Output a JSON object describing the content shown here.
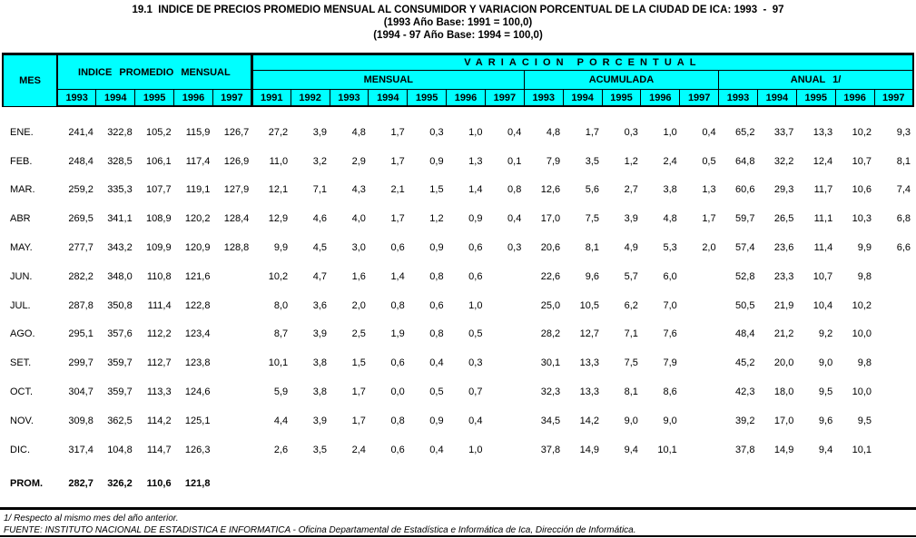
{
  "title": {
    "line1": "19.1  INDICE DE PRECIOS PROMEDIO MENSUAL AL CONSUMIDOR Y VARIACION PORCENTUAL DE LA CIUDAD DE ICA: 1993  -  97",
    "line2": "(1993 Año Base: 1991 = 100,0)",
    "line3": "(1994 - 97 Año Base: 1994 = 100,0)"
  },
  "header": {
    "mes": "MES",
    "indice_group": "INDICE PROMEDIO MENSUAL",
    "variacion_group": "VARIACION PORCENTUAL",
    "mensual_group": "MENSUAL",
    "acumulada_group": "ACUMULADA",
    "anual_group": "ANUAL 1/",
    "years": {
      "indice": [
        "1993",
        "1994",
        "1995",
        "1996",
        "1997"
      ],
      "mensual": [
        "1991",
        "1992",
        "1993",
        "1994",
        "1995",
        "1996",
        "1997"
      ],
      "acumulada": [
        "1993",
        "1994",
        "1995",
        "1996",
        "1997"
      ],
      "anual": [
        "1993",
        "1994",
        "1995",
        "1996",
        "1997"
      ]
    }
  },
  "rows": [
    {
      "mes": "ENE.",
      "indice": [
        "241,4",
        "322,8",
        "105,2",
        "115,9",
        "126,7"
      ],
      "mensual": [
        "27,2",
        "3,9",
        "4,8",
        "1,7",
        "0,3",
        "1,0",
        "0,4"
      ],
      "acumulada": [
        "4,8",
        "1,7",
        "0,3",
        "1,0",
        "0,4"
      ],
      "anual": [
        "65,2",
        "33,7",
        "13,3",
        "10,2",
        "9,3"
      ]
    },
    {
      "mes": "FEB.",
      "indice": [
        "248,4",
        "328,5",
        "106,1",
        "117,4",
        "126,9"
      ],
      "mensual": [
        "11,0",
        "3,2",
        "2,9",
        "1,7",
        "0,9",
        "1,3",
        "0,1"
      ],
      "acumulada": [
        "7,9",
        "3,5",
        "1,2",
        "2,4",
        "0,5"
      ],
      "anual": [
        "64,8",
        "32,2",
        "12,4",
        "10,7",
        "8,1"
      ]
    },
    {
      "mes": "MAR.",
      "indice": [
        "259,2",
        "335,3",
        "107,7",
        "119,1",
        "127,9"
      ],
      "mensual": [
        "12,1",
        "7,1",
        "4,3",
        "2,1",
        "1,5",
        "1,4",
        "0,8"
      ],
      "acumulada": [
        "12,6",
        "5,6",
        "2,7",
        "3,8",
        "1,3"
      ],
      "anual": [
        "60,6",
        "29,3",
        "11,7",
        "10,6",
        "7,4"
      ]
    },
    {
      "mes": "ABR",
      "indice": [
        "269,5",
        "341,1",
        "108,9",
        "120,2",
        "128,4"
      ],
      "mensual": [
        "12,9",
        "4,6",
        "4,0",
        "1,7",
        "1,2",
        "0,9",
        "0,4"
      ],
      "acumulada": [
        "17,0",
        "7,5",
        "3,9",
        "4,8",
        "1,7"
      ],
      "anual": [
        "59,7",
        "26,5",
        "11,1",
        "10,3",
        "6,8"
      ]
    },
    {
      "mes": "MAY.",
      "indice": [
        "277,7",
        "343,2",
        "109,9",
        "120,9",
        "128,8"
      ],
      "mensual": [
        "9,9",
        "4,5",
        "3,0",
        "0,6",
        "0,9",
        "0,6",
        "0,3"
      ],
      "acumulada": [
        "20,6",
        "8,1",
        "4,9",
        "5,3",
        "2,0"
      ],
      "anual": [
        "57,4",
        "23,6",
        "11,4",
        "9,9",
        "6,6"
      ]
    },
    {
      "mes": "JUN.",
      "indice": [
        "282,2",
        "348,0",
        "110,8",
        "121,6",
        ""
      ],
      "mensual": [
        "10,2",
        "4,7",
        "1,6",
        "1,4",
        "0,8",
        "0,6",
        ""
      ],
      "acumulada": [
        "22,6",
        "9,6",
        "5,7",
        "6,0",
        ""
      ],
      "anual": [
        "52,8",
        "23,3",
        "10,7",
        "9,8",
        ""
      ]
    },
    {
      "mes": "JUL.",
      "indice": [
        "287,8",
        "350,8",
        "111,4",
        "122,8",
        ""
      ],
      "mensual": [
        "8,0",
        "3,6",
        "2,0",
        "0,8",
        "0,6",
        "1,0",
        ""
      ],
      "acumulada": [
        "25,0",
        "10,5",
        "6,2",
        "7,0",
        ""
      ],
      "anual": [
        "50,5",
        "21,9",
        "10,4",
        "10,2",
        ""
      ]
    },
    {
      "mes": "AGO.",
      "indice": [
        "295,1",
        "357,6",
        "112,2",
        "123,4",
        ""
      ],
      "mensual": [
        "8,7",
        "3,9",
        "2,5",
        "1,9",
        "0,8",
        "0,5",
        ""
      ],
      "acumulada": [
        "28,2",
        "12,7",
        "7,1",
        "7,6",
        ""
      ],
      "anual": [
        "48,4",
        "21,2",
        "9,2",
        "10,0",
        ""
      ]
    },
    {
      "mes": "SET.",
      "indice": [
        "299,7",
        "359,7",
        "112,7",
        "123,8",
        ""
      ],
      "mensual": [
        "10,1",
        "3,8",
        "1,5",
        "0,6",
        "0,4",
        "0,3",
        ""
      ],
      "acumulada": [
        "30,1",
        "13,3",
        "7,5",
        "7,9",
        ""
      ],
      "anual": [
        "45,2",
        "20,0",
        "9,0",
        "9,8",
        ""
      ]
    },
    {
      "mes": "OCT.",
      "indice": [
        "304,7",
        "359,7",
        "113,3",
        "124,6",
        ""
      ],
      "mensual": [
        "5,9",
        "3,8",
        "1,7",
        "0,0",
        "0,5",
        "0,7",
        ""
      ],
      "acumulada": [
        "32,3",
        "13,3",
        "8,1",
        "8,6",
        ""
      ],
      "anual": [
        "42,3",
        "18,0",
        "9,5",
        "10,0",
        ""
      ]
    },
    {
      "mes": "NOV.",
      "indice": [
        "309,8",
        "362,5",
        "114,2",
        "125,1",
        ""
      ],
      "mensual": [
        "4,4",
        "3,9",
        "1,7",
        "0,8",
        "0,9",
        "0,4",
        ""
      ],
      "acumulada": [
        "34,5",
        "14,2",
        "9,0",
        "9,0",
        ""
      ],
      "anual": [
        "39,2",
        "17,0",
        "9,6",
        "9,5",
        ""
      ]
    },
    {
      "mes": "DIC.",
      "indice": [
        "317,4",
        "104,8",
        "114,7",
        "126,3",
        ""
      ],
      "mensual": [
        "2,6",
        "3,5",
        "2,4",
        "0,6",
        "0,4",
        "1,0",
        ""
      ],
      "acumulada": [
        "37,8",
        "14,9",
        "9,4",
        "10,1",
        ""
      ],
      "anual": [
        "37,8",
        "14,9",
        "9,4",
        "10,1",
        ""
      ]
    }
  ],
  "prom": {
    "mes": "PROM.",
    "indice": [
      "282,7",
      "326,2",
      "110,6",
      "121,8",
      ""
    ],
    "mensual": [
      "",
      "",
      "",
      "",
      "",
      "",
      ""
    ],
    "acumulada": [
      "",
      "",
      "",
      "",
      ""
    ],
    "anual": [
      "",
      "",
      "",
      "",
      ""
    ]
  },
  "footnotes": [
    "1/ Respecto al mismo mes del año anterior.",
    "FUENTE: INSTITUTO NACIONAL DE ESTADISTICA E INFORMATICA - Oficina Departamental de Estadística e Informática de Ica, Dirección de Informática."
  ],
  "colors": {
    "header_bg": "#00FFFF",
    "border": "#000000"
  }
}
